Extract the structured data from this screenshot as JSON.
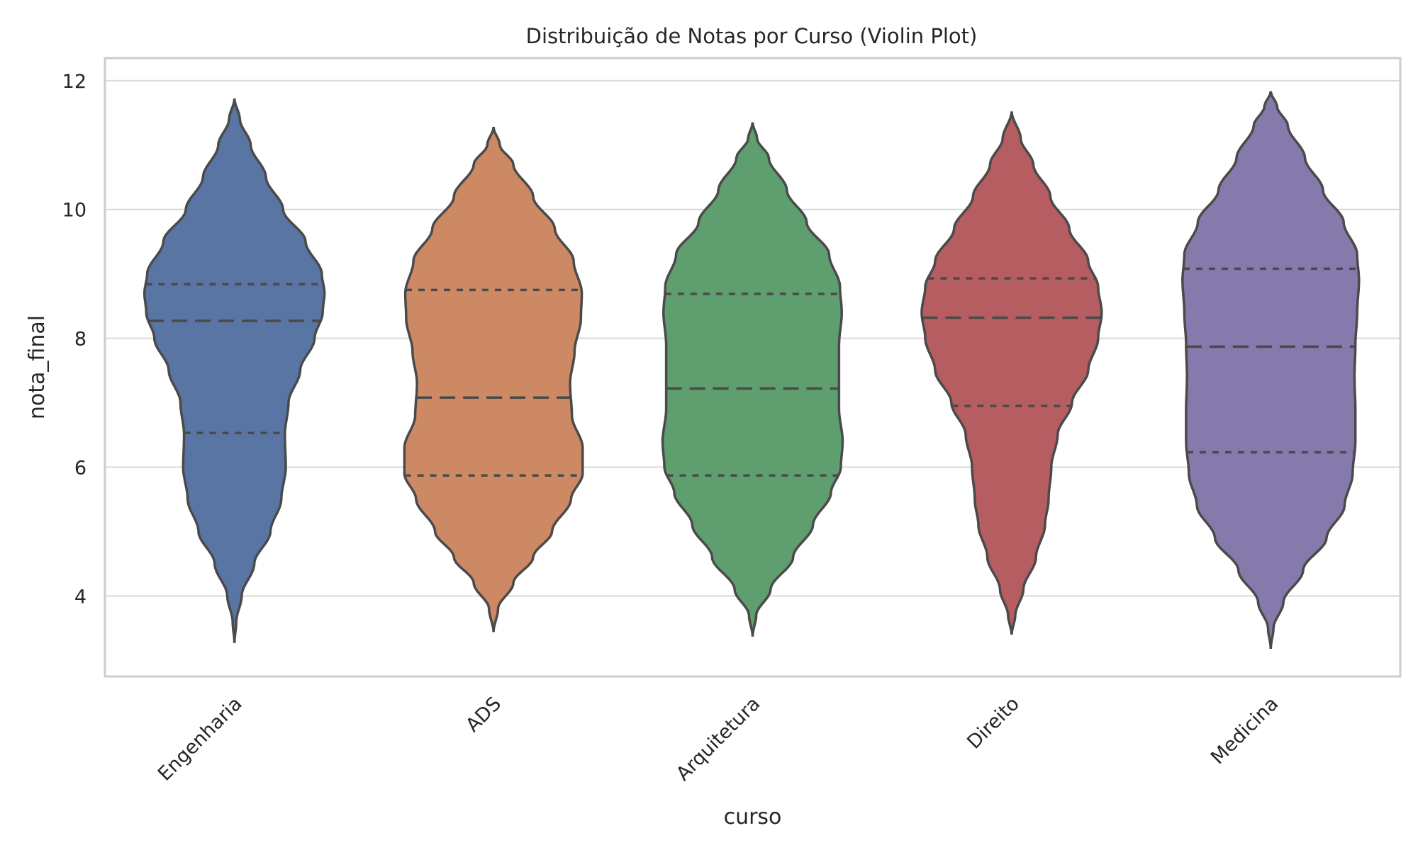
{
  "chart_data": {
    "type": "violin",
    "title": "Distribuição de Notas por Curso (Violin Plot)",
    "xlabel": "curso",
    "ylabel": "nota_final",
    "ylim": [
      2.75,
      12.35
    ],
    "yticks": [
      4,
      6,
      8,
      10,
      12
    ],
    "grid": true,
    "inner": "quartile",
    "categories": [
      "Engenharia",
      "ADS",
      "Arquitetura",
      "Direito",
      "Medicina"
    ],
    "series": [
      {
        "category": "Engenharia",
        "color": "#5875a4",
        "min": 3.27,
        "max": 11.72,
        "q1": 6.53,
        "median": 8.27,
        "q3": 8.84,
        "profile": [
          [
            3.27,
            0
          ],
          [
            3.6,
            0.02
          ],
          [
            4.0,
            0.08
          ],
          [
            4.5,
            0.22
          ],
          [
            5.0,
            0.4
          ],
          [
            5.5,
            0.52
          ],
          [
            6.0,
            0.57
          ],
          [
            6.5,
            0.56
          ],
          [
            7.0,
            0.6
          ],
          [
            7.5,
            0.73
          ],
          [
            8.0,
            0.89
          ],
          [
            8.4,
            0.98
          ],
          [
            8.7,
            1.0
          ],
          [
            9.0,
            0.97
          ],
          [
            9.5,
            0.79
          ],
          [
            10.0,
            0.54
          ],
          [
            10.5,
            0.35
          ],
          [
            11.0,
            0.18
          ],
          [
            11.4,
            0.06
          ],
          [
            11.72,
            0
          ]
        ]
      },
      {
        "category": "ADS",
        "color": "#cc8963",
        "min": 3.44,
        "max": 11.28,
        "q1": 5.87,
        "median": 7.08,
        "q3": 8.75,
        "profile": [
          [
            3.44,
            0
          ],
          [
            3.8,
            0.05
          ],
          [
            4.2,
            0.22
          ],
          [
            4.6,
            0.44
          ],
          [
            5.0,
            0.65
          ],
          [
            5.5,
            0.86
          ],
          [
            5.9,
            0.99
          ],
          [
            6.3,
            0.99
          ],
          [
            6.8,
            0.87
          ],
          [
            7.3,
            0.85
          ],
          [
            7.8,
            0.9
          ],
          [
            8.3,
            0.97
          ],
          [
            8.7,
            0.98
          ],
          [
            9.2,
            0.89
          ],
          [
            9.7,
            0.68
          ],
          [
            10.2,
            0.44
          ],
          [
            10.7,
            0.22
          ],
          [
            11.0,
            0.07
          ],
          [
            11.28,
            0
          ]
        ]
      },
      {
        "category": "Arquitetura",
        "color": "#5f9e6e",
        "min": 3.37,
        "max": 11.35,
        "q1": 5.87,
        "median": 7.22,
        "q3": 8.69,
        "profile": [
          [
            3.37,
            0
          ],
          [
            3.7,
            0.04
          ],
          [
            4.1,
            0.2
          ],
          [
            4.6,
            0.45
          ],
          [
            5.1,
            0.67
          ],
          [
            5.6,
            0.87
          ],
          [
            6.0,
            0.98
          ],
          [
            6.4,
            1.0
          ],
          [
            6.9,
            0.96
          ],
          [
            7.4,
            0.96
          ],
          [
            7.9,
            0.96
          ],
          [
            8.4,
            0.99
          ],
          [
            8.8,
            0.97
          ],
          [
            9.3,
            0.85
          ],
          [
            9.8,
            0.6
          ],
          [
            10.3,
            0.38
          ],
          [
            10.8,
            0.18
          ],
          [
            11.1,
            0.05
          ],
          [
            11.35,
            0
          ]
        ]
      },
      {
        "category": "Direito",
        "color": "#b55d60",
        "min": 3.4,
        "max": 11.52,
        "q1": 6.95,
        "median": 8.32,
        "q3": 8.93,
        "profile": [
          [
            3.4,
            0
          ],
          [
            3.7,
            0.04
          ],
          [
            4.1,
            0.13
          ],
          [
            4.6,
            0.27
          ],
          [
            5.1,
            0.37
          ],
          [
            5.5,
            0.41
          ],
          [
            6.0,
            0.44
          ],
          [
            6.5,
            0.51
          ],
          [
            7.0,
            0.67
          ],
          [
            7.5,
            0.85
          ],
          [
            8.0,
            0.96
          ],
          [
            8.4,
            1.0
          ],
          [
            8.8,
            0.96
          ],
          [
            9.2,
            0.85
          ],
          [
            9.7,
            0.64
          ],
          [
            10.2,
            0.43
          ],
          [
            10.7,
            0.24
          ],
          [
            11.1,
            0.1
          ],
          [
            11.52,
            0
          ]
        ]
      },
      {
        "category": "Medicina",
        "color": "#857aab",
        "min": 3.18,
        "max": 11.83,
        "q1": 6.23,
        "median": 7.87,
        "q3": 9.08,
        "profile": [
          [
            3.18,
            0
          ],
          [
            3.5,
            0.03
          ],
          [
            3.9,
            0.14
          ],
          [
            4.4,
            0.36
          ],
          [
            4.9,
            0.62
          ],
          [
            5.4,
            0.82
          ],
          [
            5.9,
            0.91
          ],
          [
            6.4,
            0.94
          ],
          [
            6.9,
            0.94
          ],
          [
            7.4,
            0.93
          ],
          [
            7.9,
            0.94
          ],
          [
            8.4,
            0.96
          ],
          [
            8.9,
            0.98
          ],
          [
            9.3,
            0.96
          ],
          [
            9.8,
            0.81
          ],
          [
            10.3,
            0.58
          ],
          [
            10.8,
            0.38
          ],
          [
            11.3,
            0.19
          ],
          [
            11.6,
            0.07
          ],
          [
            11.83,
            0
          ]
        ]
      }
    ]
  }
}
